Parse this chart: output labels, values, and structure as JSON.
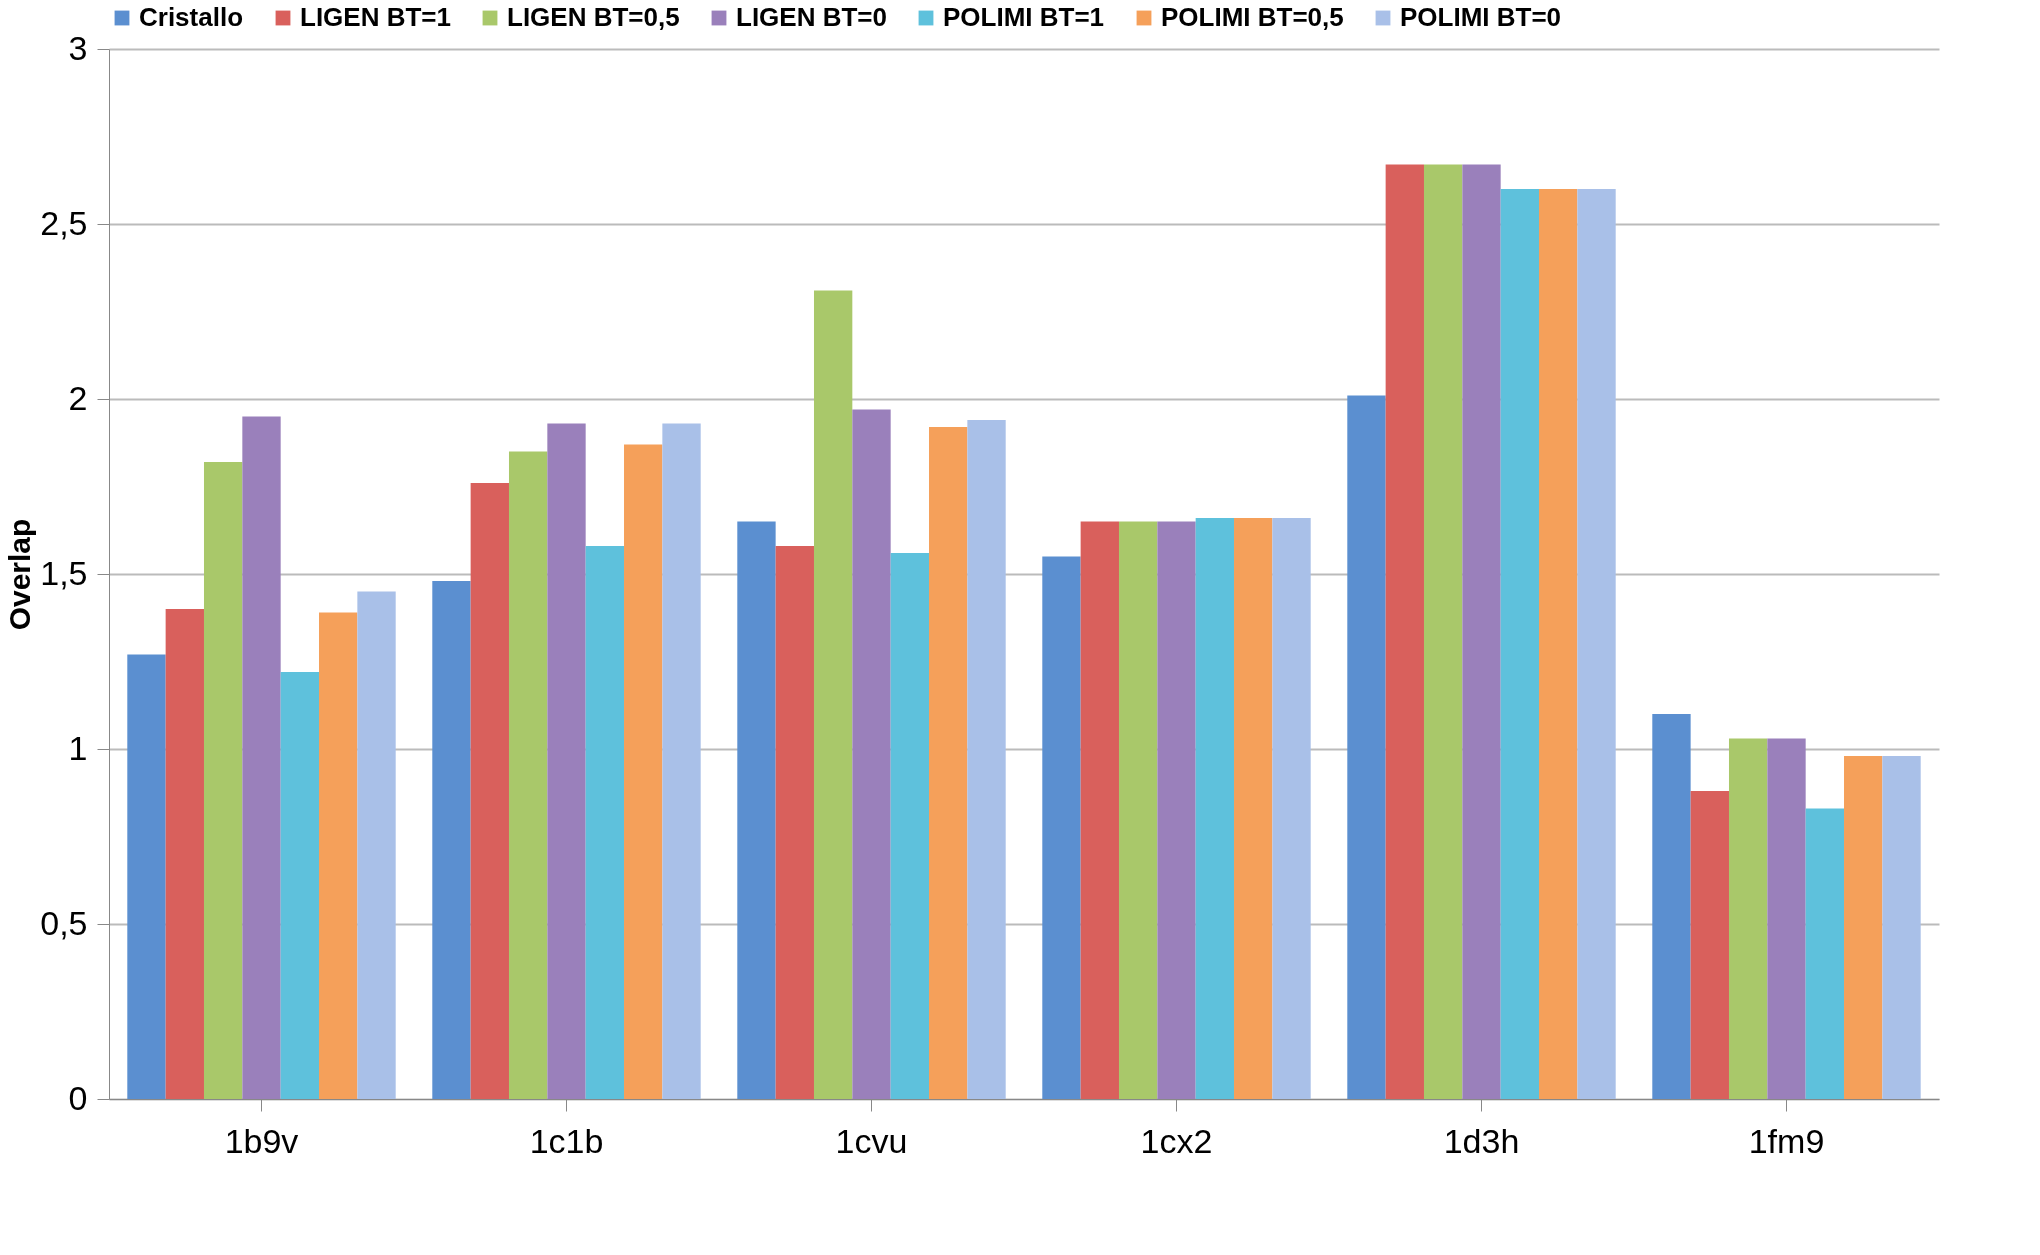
{
  "chart_data": {
    "type": "bar",
    "ylabel": "Overlap",
    "categories": [
      "1b9v",
      "1c1b",
      "1cvu",
      "1cx2",
      "1d3h",
      "1fm9"
    ],
    "series": [
      {
        "name": "Cristallo",
        "color": "#5b8fd0",
        "values": [
          1.27,
          1.48,
          1.65,
          1.55,
          2.01,
          1.1
        ]
      },
      {
        "name": "LIGEN BT=1",
        "color": "#d9605c",
        "values": [
          1.4,
          1.76,
          1.58,
          1.65,
          2.67,
          0.88
        ]
      },
      {
        "name": "LIGEN BT=0,5",
        "color": "#a9c86a",
        "values": [
          1.82,
          1.85,
          2.31,
          1.65,
          2.67,
          1.03
        ]
      },
      {
        "name": "LIGEN BT=0",
        "color": "#9a80bb",
        "values": [
          1.95,
          1.93,
          1.97,
          1.65,
          2.67,
          1.03
        ]
      },
      {
        "name": "POLIMI BT=1",
        "color": "#5ec1dc",
        "values": [
          1.22,
          1.58,
          1.56,
          1.66,
          2.6,
          0.83
        ]
      },
      {
        "name": "POLIMI BT=0,5",
        "color": "#f5a05a",
        "values": [
          1.39,
          1.87,
          1.92,
          1.66,
          2.6,
          0.98
        ]
      },
      {
        "name": "POLIMI BT=0",
        "color": "#a9c0e8",
        "values": [
          1.45,
          1.93,
          1.94,
          1.66,
          2.6,
          0.98
        ]
      }
    ],
    "ylim": [
      0,
      3
    ],
    "yticks": [
      0,
      {
        "value": 0.5,
        "label": "0,5"
      },
      1,
      {
        "value": 1.5,
        "label": "1,5"
      },
      2,
      {
        "value": 2.5,
        "label": "2,5"
      },
      3
    ],
    "grid": "y",
    "legend": "top"
  }
}
